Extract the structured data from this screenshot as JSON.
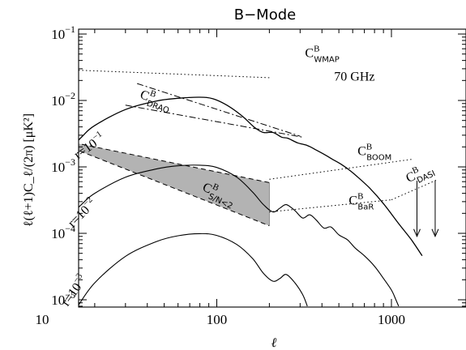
{
  "chart_data": {
    "type": "line",
    "title": "B−Mode",
    "xlabel": "ℓ",
    "ylabel": "ℓ(ℓ+1)C_ℓ/(2π) [μK²]",
    "xscale": "log",
    "yscale": "log",
    "xlim": [
      10,
      1800
    ],
    "ylim": [
      8e-06,
      0.1
    ],
    "frequency_label": "70 GHz",
    "x_tick_labels": [
      "10",
      "100",
      "1000"
    ],
    "y_tick_labels": [
      {
        "base": "10",
        "exp": "−1"
      },
      {
        "base": "10",
        "exp": "−2"
      },
      {
        "base": "10",
        "exp": "−3"
      },
      {
        "base": "10",
        "exp": "−4"
      },
      {
        "base": "10",
        "exp": "−5"
      }
    ],
    "series": [
      {
        "label": "r=10⁻¹",
        "style": "solid",
        "stroke_width": 1.3,
        "points": [
          [
            10,
            0.0027
          ],
          [
            11,
            0.0017
          ],
          [
            12.3,
            0.00135
          ],
          [
            14,
            0.0017
          ],
          [
            17,
            0.0029
          ],
          [
            20,
            0.0042
          ],
          [
            30,
            0.0073
          ],
          [
            45,
            0.0098
          ],
          [
            60,
            0.0108
          ],
          [
            80,
            0.0112
          ],
          [
            95,
            0.0106
          ],
          [
            115,
            0.0084
          ],
          [
            140,
            0.0058
          ],
          [
            165,
            0.0039
          ],
          [
            185,
            0.0033
          ],
          [
            210,
            0.0033
          ],
          [
            235,
            0.0028
          ],
          [
            255,
            0.0027
          ],
          [
            290,
            0.0023
          ],
          [
            330,
            0.0021
          ],
          [
            370,
            0.0018
          ],
          [
            420,
            0.0015
          ],
          [
            460,
            0.0013
          ],
          [
            520,
            0.00108
          ],
          [
            580,
            0.00088
          ],
          [
            650,
            0.00068
          ],
          [
            750,
            0.00048
          ],
          [
            900,
            0.00028
          ],
          [
            1100,
            0.00014
          ],
          [
            1300,
            8e-05
          ],
          [
            1500,
            4.6e-05
          ]
        ]
      },
      {
        "label": "r=10⁻²",
        "style": "solid",
        "stroke_width": 1.1,
        "points": [
          [
            10,
            0.00028
          ],
          [
            11,
            0.00017
          ],
          [
            12.3,
            0.000138
          ],
          [
            14,
            0.00017
          ],
          [
            17,
            0.00028
          ],
          [
            20,
            0.0004
          ],
          [
            30,
            0.0007
          ],
          [
            45,
            0.00093
          ],
          [
            60,
            0.00104
          ],
          [
            80,
            0.00106
          ],
          [
            100,
            0.00098
          ],
          [
            130,
            0.0007
          ],
          [
            160,
            0.00042
          ],
          [
            185,
            0.00027
          ],
          [
            210,
            0.00021
          ],
          [
            230,
            0.00024
          ],
          [
            250,
            0.00027
          ],
          [
            280,
            0.00022
          ],
          [
            310,
            0.00017
          ],
          [
            340,
            0.00019
          ],
          [
            370,
            0.00016
          ],
          [
            410,
            0.00012
          ],
          [
            450,
            0.000125
          ],
          [
            500,
            9.5e-05
          ],
          [
            560,
            8e-05
          ],
          [
            620,
            6e-05
          ],
          [
            700,
            4.6e-05
          ],
          [
            800,
            3.2e-05
          ],
          [
            900,
            2.1e-05
          ],
          [
            1000,
            1.4e-05
          ],
          [
            1060,
            1e-05
          ],
          [
            1100,
            8e-06
          ]
        ]
      },
      {
        "label": "r=10⁻³",
        "style": "solid",
        "stroke_width": 1.1,
        "points": [
          [
            16,
            8e-06
          ],
          [
            20,
            1.8e-05
          ],
          [
            30,
            4.5e-05
          ],
          [
            45,
            7.5e-05
          ],
          [
            60,
            9.2e-05
          ],
          [
            80,
            9.9e-05
          ],
          [
            100,
            9.3e-05
          ],
          [
            130,
            6.8e-05
          ],
          [
            160,
            4.2e-05
          ],
          [
            185,
            2.5e-05
          ],
          [
            210,
            1.9e-05
          ],
          [
            230,
            2.1e-05
          ],
          [
            250,
            2.4e-05
          ],
          [
            280,
            1.8e-05
          ],
          [
            310,
            1.2e-05
          ],
          [
            330,
            8e-06
          ]
        ]
      }
    ],
    "residual_band": {
      "label_main": "C",
      "label_sup": "B",
      "label_sub": "S/N<2",
      "upper": [
        [
          10,
          0.0029
        ],
        [
          200,
          0.00058
        ]
      ],
      "lower": [
        [
          10,
          0.0029
        ],
        [
          200,
          0.00013
        ]
      ]
    },
    "sensitivity_lines": [
      {
        "label_main": "C",
        "label_sup": "B",
        "label_sub": "WMAP",
        "style": "dotted",
        "points": [
          [
            10,
            0.03
          ],
          [
            200,
            0.022
          ]
        ]
      },
      {
        "label_main": "C",
        "label_sup": "B",
        "label_sub": "DRAO",
        "style": "dashdot",
        "points": [
          [
            35,
            0.018
          ],
          [
            300,
            0.0029
          ]
        ]
      },
      {
        "label_main": "C",
        "label_sup": "B",
        "label_sub": "",
        "style": "dashdot",
        "points": [
          [
            30,
            0.0085
          ],
          [
            310,
            0.0028
          ]
        ]
      },
      {
        "label_main": "C",
        "label_sup": "B",
        "label_sub": "BOOM",
        "style": "dotted",
        "points": [
          [
            200,
            0.00065
          ],
          [
            1300,
            0.0013
          ]
        ]
      },
      {
        "label_main": "C",
        "label_sup": "B",
        "label_sub": "BaR",
        "style": "dotted",
        "points": [
          [
            200,
            0.00021
          ],
          [
            1000,
            0.00032
          ]
        ]
      },
      {
        "label_main": "C",
        "label_sup": "B",
        "label_sub": "DASI",
        "style": "dotted",
        "points": [
          [
            1000,
            0.00032
          ],
          [
            1800,
            0.00063
          ]
        ]
      }
    ],
    "upper_limit_arrows": [
      {
        "x": 1400,
        "y_top": 0.00062,
        "y_bottom": 9e-05
      },
      {
        "x": 1780,
        "y_top": 0.00062,
        "y_bottom": 9e-05
      }
    ],
    "annotations": [
      {
        "main": "C",
        "sup": "B",
        "sub": "WMAP",
        "x": 320,
        "y": 0.045,
        "rotate": 0
      },
      {
        "main": "70 GHz",
        "x": 470,
        "y": 0.02,
        "rotate": 0
      },
      {
        "main": "C",
        "sup": "B",
        "sub": "DRAO",
        "x": 36,
        "y": 0.011,
        "rotate": 20
      },
      {
        "main": "C",
        "sup": "B",
        "sub": "BOOM",
        "x": 640,
        "y": 0.0015,
        "rotate": 0
      },
      {
        "main": "C",
        "sup": "B",
        "sub": "DASI",
        "x": 1250,
        "y": 0.00058,
        "rotate": -25
      },
      {
        "main": "C",
        "sup": "B",
        "sub": "BaR",
        "x": 570,
        "y": 0.00027,
        "rotate": 0
      },
      {
        "main": "C",
        "sup": "B",
        "sub": "S/N<2",
        "x": 82,
        "y": 0.00045,
        "rotate": 25
      },
      {
        "main": "r=10",
        "sup": "−1",
        "x": 16,
        "y": 0.0013,
        "rotate": -35
      },
      {
        "main": "r=10",
        "sup": "−2",
        "x": 15,
        "y": 0.00012,
        "rotate": -45
      },
      {
        "main": "r=10",
        "sup": "−3",
        "x": 14,
        "y": 7.8e-06,
        "rotate": -55
      }
    ]
  }
}
